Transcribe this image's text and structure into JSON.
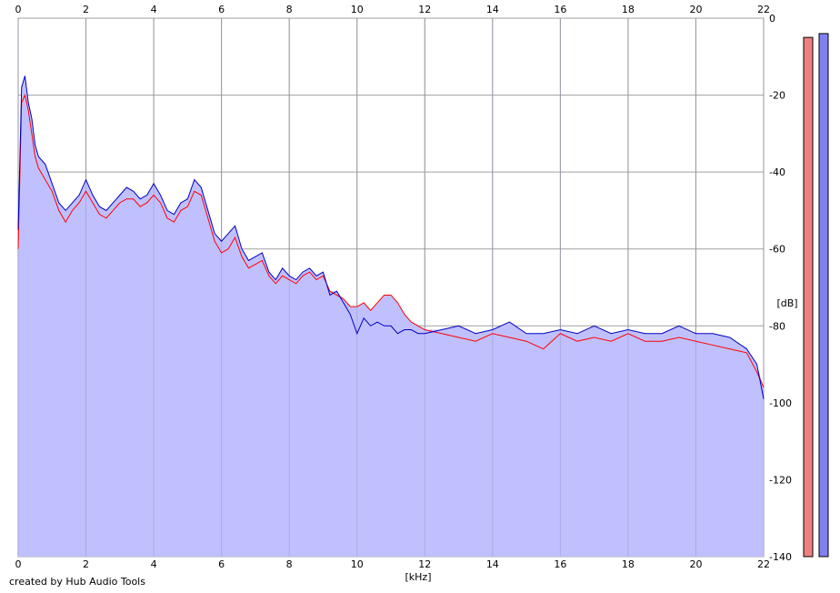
{
  "footer": {
    "credit": "created by Hub Audio Tools"
  },
  "chart_data": {
    "type": "area",
    "title": "",
    "xlabel": "[kHz]",
    "ylabel": "[dB]",
    "xlim": [
      0,
      22
    ],
    "ylim": [
      -140,
      0
    ],
    "x_ticks": [
      "0",
      "2",
      "4",
      "6",
      "8",
      "10",
      "12",
      "14",
      "16",
      "18",
      "20",
      "22"
    ],
    "y_ticks": [
      "0",
      "-20",
      "-40",
      "-60",
      "-80",
      "-100",
      "-120",
      "-140"
    ],
    "grid": true,
    "colors": {
      "fill": "#c0c0ff",
      "blue": "#0000c0",
      "red": "#ff0000",
      "meter_red": "#f08080",
      "meter_blue": "#8080f0"
    },
    "series": [
      {
        "color": "#0000c0",
        "x": [
          0,
          0.1,
          0.2,
          0.3,
          0.4,
          0.5,
          0.6,
          0.8,
          1.0,
          1.2,
          1.4,
          1.6,
          1.8,
          2.0,
          2.2,
          2.4,
          2.6,
          2.8,
          3.0,
          3.2,
          3.4,
          3.6,
          3.8,
          4.0,
          4.2,
          4.4,
          4.6,
          4.8,
          5.0,
          5.2,
          5.4,
          5.6,
          5.8,
          6.0,
          6.2,
          6.4,
          6.6,
          6.8,
          7.0,
          7.2,
          7.4,
          7.6,
          7.8,
          8.0,
          8.2,
          8.4,
          8.6,
          8.8,
          9.0,
          9.2,
          9.4,
          9.6,
          9.8,
          10.0,
          10.2,
          10.4,
          10.6,
          10.8,
          11.0,
          11.2,
          11.4,
          11.6,
          11.8,
          12.0,
          12.5,
          13.0,
          13.5,
          14.0,
          14.5,
          15.0,
          15.5,
          16.0,
          16.5,
          17.0,
          17.5,
          18.0,
          18.5,
          19.0,
          19.5,
          20.0,
          20.5,
          21.0,
          21.5,
          21.8,
          22.0
        ],
        "y": [
          -55,
          -18,
          -15,
          -22,
          -26,
          -33,
          -36,
          -38,
          -43,
          -48,
          -50,
          -48,
          -46,
          -42,
          -46,
          -49,
          -50,
          -48,
          -46,
          -44,
          -45,
          -47,
          -46,
          -43,
          -46,
          -50,
          -51,
          -48,
          -47,
          -42,
          -44,
          -50,
          -56,
          -58,
          -56,
          -54,
          -60,
          -63,
          -62,
          -61,
          -66,
          -68,
          -65,
          -67,
          -68,
          -66,
          -65,
          -67,
          -66,
          -72,
          -71,
          -74,
          -77,
          -82,
          -78,
          -80,
          -79,
          -80,
          -80,
          -82,
          -81,
          -81,
          -82,
          -82,
          -81,
          -80,
          -82,
          -81,
          -79,
          -82,
          -82,
          -81,
          -82,
          -80,
          -82,
          -81,
          -82,
          -82,
          -80,
          -82,
          -82,
          -83,
          -86,
          -90,
          -99
        ]
      },
      {
        "color": "#ff0000",
        "x": [
          0,
          0.1,
          0.2,
          0.3,
          0.4,
          0.5,
          0.6,
          0.8,
          1.0,
          1.2,
          1.4,
          1.6,
          1.8,
          2.0,
          2.2,
          2.4,
          2.6,
          2.8,
          3.0,
          3.2,
          3.4,
          3.6,
          3.8,
          4.0,
          4.2,
          4.4,
          4.6,
          4.8,
          5.0,
          5.2,
          5.4,
          5.6,
          5.8,
          6.0,
          6.2,
          6.4,
          6.6,
          6.8,
          7.0,
          7.2,
          7.4,
          7.6,
          7.8,
          8.0,
          8.2,
          8.4,
          8.6,
          8.8,
          9.0,
          9.2,
          9.4,
          9.6,
          9.8,
          10.0,
          10.2,
          10.4,
          10.6,
          10.8,
          11.0,
          11.2,
          11.4,
          11.6,
          11.8,
          12.0,
          12.5,
          13.0,
          13.5,
          14.0,
          14.5,
          15.0,
          15.5,
          16.0,
          16.5,
          17.0,
          17.5,
          18.0,
          18.5,
          19.0,
          19.5,
          20.0,
          20.5,
          21.0,
          21.5,
          21.8,
          22.0
        ],
        "y": [
          -60,
          -22,
          -20,
          -24,
          -30,
          -36,
          -39,
          -42,
          -45,
          -50,
          -53,
          -50,
          -48,
          -45,
          -48,
          -51,
          -52,
          -50,
          -48,
          -47,
          -47,
          -49,
          -48,
          -46,
          -48,
          -52,
          -53,
          -50,
          -49,
          -45,
          -46,
          -52,
          -58,
          -61,
          -60,
          -57,
          -62,
          -65,
          -64,
          -63,
          -67,
          -69,
          -67,
          -68,
          -69,
          -67,
          -66,
          -68,
          -67,
          -71,
          -72,
          -73,
          -75,
          -75,
          -74,
          -76,
          -74,
          -72,
          -72,
          -74,
          -77,
          -79,
          -80,
          -81,
          -82,
          -83,
          -84,
          -82,
          -83,
          -84,
          -86,
          -82,
          -84,
          -83,
          -84,
          -82,
          -84,
          -84,
          -83,
          -84,
          -85,
          -86,
          -87,
          -92,
          -96
        ]
      }
    ],
    "meters": [
      {
        "channel": "red",
        "level_db": -5
      },
      {
        "channel": "blue",
        "level_db": -4
      }
    ]
  }
}
